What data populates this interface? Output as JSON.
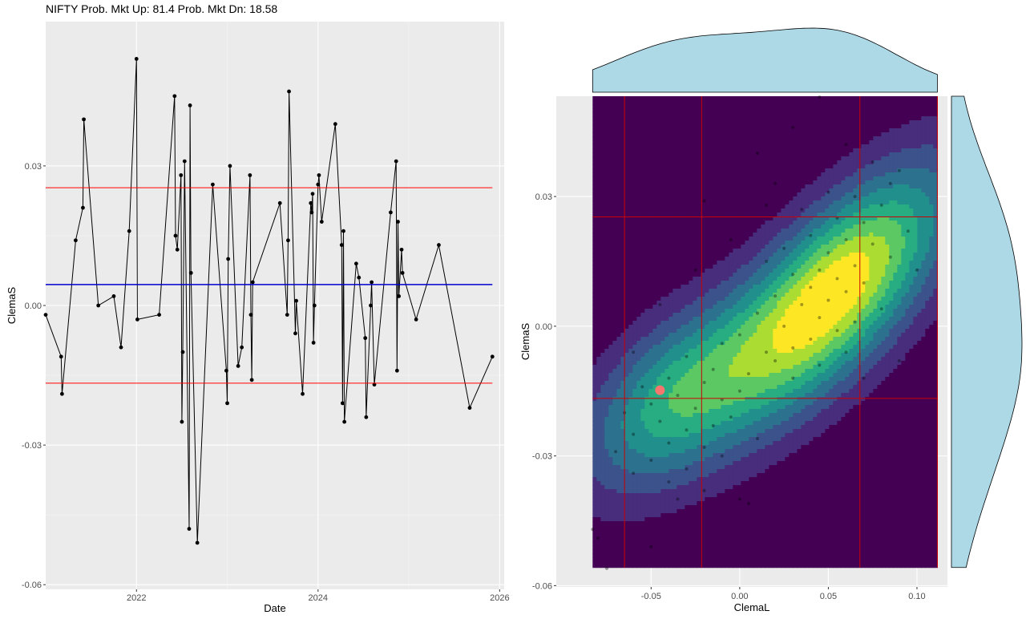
{
  "title": "NIFTY Prob. Mkt Up:  81.4  Prob. Mkt Dn:  18.58",
  "colors": {
    "panel_bg": "#ebebeb",
    "grid_major": "#ffffff",
    "line": "#000000",
    "mean_line": "#0000cc",
    "band_line": "#ff0000",
    "marginal_fill": "#add8e6",
    "current_point": "#f8766d",
    "viridis": [
      "#440154",
      "#472d7b",
      "#3b528b",
      "#2c728e",
      "#21908d",
      "#27ad81",
      "#5cc863",
      "#aadc32",
      "#fde725"
    ]
  },
  "chart_data": [
    {
      "type": "line",
      "xlabel": "Date",
      "ylabel": "ClemaS",
      "xlim": [
        2021.0,
        2026.05
      ],
      "ylim": [
        -0.061,
        0.061
      ],
      "x_ticks": [
        2022,
        2024,
        2026
      ],
      "x_tick_labels": [
        "2022",
        "2024",
        "2026"
      ],
      "y_ticks": [
        -0.06,
        -0.03,
        0.0,
        0.03
      ],
      "y_tick_labels": [
        "-0.06",
        "-0.03",
        "0.00",
        "0.03"
      ],
      "grid": true,
      "hlines": [
        {
          "name": "mean",
          "y": 0.0045,
          "color": "#0000cc"
        },
        {
          "name": "upper",
          "y": 0.0253,
          "color": "#ff0000"
        },
        {
          "name": "lower",
          "y": -0.0167,
          "color": "#ff0000"
        }
      ],
      "points": [
        [
          2021.0,
          -0.002
        ],
        [
          2021.17,
          -0.011
        ],
        [
          2021.18,
          -0.019
        ],
        [
          2021.33,
          0.014
        ],
        [
          2021.41,
          0.021
        ],
        [
          2021.42,
          0.04
        ],
        [
          2021.58,
          0.0
        ],
        [
          2021.75,
          0.002
        ],
        [
          2021.83,
          -0.009
        ],
        [
          2021.92,
          0.016
        ],
        [
          2022.0,
          0.053
        ],
        [
          2022.01,
          -0.003
        ],
        [
          2022.25,
          -0.002
        ],
        [
          2022.42,
          0.045
        ],
        [
          2022.43,
          0.015
        ],
        [
          2022.45,
          0.012
        ],
        [
          2022.49,
          0.028
        ],
        [
          2022.5,
          -0.025
        ],
        [
          2022.51,
          -0.01
        ],
        [
          2022.53,
          0.031
        ],
        [
          2022.58,
          -0.048
        ],
        [
          2022.59,
          0.043
        ],
        [
          2022.6,
          0.007
        ],
        [
          2022.67,
          -0.051
        ],
        [
          2022.84,
          0.026
        ],
        [
          2022.99,
          -0.014
        ],
        [
          2023.0,
          -0.021
        ],
        [
          2023.01,
          0.01
        ],
        [
          2023.03,
          0.03
        ],
        [
          2023.12,
          -0.013
        ],
        [
          2023.16,
          -0.009
        ],
        [
          2023.25,
          0.028
        ],
        [
          2023.26,
          -0.002
        ],
        [
          2023.27,
          -0.016
        ],
        [
          2023.28,
          0.005
        ],
        [
          2023.58,
          0.022
        ],
        [
          2023.66,
          -0.002
        ],
        [
          2023.67,
          0.014
        ],
        [
          2023.68,
          0.046
        ],
        [
          2023.75,
          -0.006
        ],
        [
          2023.76,
          0.001
        ],
        [
          2023.83,
          -0.019
        ],
        [
          2023.92,
          0.022
        ],
        [
          2023.93,
          0.02
        ],
        [
          2023.94,
          0.024
        ],
        [
          2023.95,
          -0.008
        ],
        [
          2023.96,
          0.0
        ],
        [
          2024.0,
          0.026
        ],
        [
          2024.01,
          0.028
        ],
        [
          2024.04,
          0.018
        ],
        [
          2024.19,
          0.039
        ],
        [
          2024.26,
          0.013
        ],
        [
          2024.27,
          -0.021
        ],
        [
          2024.28,
          0.016
        ],
        [
          2024.29,
          -0.025
        ],
        [
          2024.42,
          0.009
        ],
        [
          2024.45,
          0.006
        ],
        [
          2024.52,
          -0.007
        ],
        [
          2024.53,
          -0.024
        ],
        [
          2024.58,
          0.0
        ],
        [
          2024.59,
          0.005
        ],
        [
          2024.62,
          -0.017
        ],
        [
          2024.8,
          0.02
        ],
        [
          2024.86,
          0.031
        ],
        [
          2024.87,
          -0.014
        ],
        [
          2024.88,
          0.018
        ],
        [
          2024.89,
          0.002
        ],
        [
          2024.92,
          0.012
        ],
        [
          2024.93,
          0.007
        ],
        [
          2025.08,
          -0.003
        ],
        [
          2025.33,
          0.013
        ],
        [
          2025.67,
          -0.022
        ],
        [
          2025.92,
          -0.011
        ]
      ]
    },
    {
      "type": "heatmap",
      "subtype": "2d density contour with scatter and marginal densities",
      "xlabel": "ClemaL",
      "ylabel": "ClemaS",
      "xlim": [
        -0.1035,
        0.1172
      ],
      "ylim": [
        -0.0603,
        0.0532
      ],
      "x_ticks": [
        -0.05,
        0.0,
        0.05,
        0.1
      ],
      "x_tick_labels": [
        "-0.05",
        "0.00",
        "0.05",
        "0.10"
      ],
      "y_ticks": [
        -0.06,
        -0.03,
        0.0,
        0.03
      ],
      "y_tick_labels": [
        "-0.06",
        "-0.03",
        "0.00",
        "0.03"
      ],
      "grid": true,
      "vlines": [
        -0.065,
        -0.0215,
        0.0678
      ],
      "hlines": [
        0.0253,
        -0.0167
      ],
      "current_point": {
        "x": -0.045,
        "y": -0.0148
      },
      "density_peak": {
        "x": 0.052,
        "y": 0.007
      },
      "density_secondary": {
        "x": -0.04,
        "y": -0.017
      },
      "points": [
        [
          0.045,
          0.053
        ],
        [
          0.03,
          0.046
        ],
        [
          0.06,
          0.042
        ],
        [
          0.01,
          0.04
        ],
        [
          0.075,
          0.038
        ],
        [
          0.09,
          0.036
        ],
        [
          0.02,
          0.033
        ],
        [
          0.05,
          0.031
        ],
        [
          0.065,
          0.03
        ],
        [
          0.08,
          0.028
        ],
        [
          -0.02,
          0.029
        ],
        [
          0.035,
          0.027
        ],
        [
          0.055,
          0.025
        ],
        [
          0.07,
          0.024
        ],
        [
          0.095,
          0.022
        ],
        [
          0.04,
          0.021
        ],
        [
          0.06,
          0.02
        ],
        [
          0.075,
          0.019
        ],
        [
          0.025,
          0.018
        ],
        [
          0.05,
          0.017
        ],
        [
          0.085,
          0.016
        ],
        [
          0.015,
          0.015
        ],
        [
          0.065,
          0.014
        ],
        [
          0.045,
          0.013
        ],
        [
          -0.025,
          0.013
        ],
        [
          0.03,
          0.012
        ],
        [
          0.055,
          0.011
        ],
        [
          0.07,
          0.01
        ],
        [
          0.04,
          0.009
        ],
        [
          0.06,
          0.008
        ],
        [
          0.02,
          0.007
        ],
        [
          0.05,
          0.006
        ],
        [
          0.035,
          0.005
        ],
        [
          0.08,
          0.004
        ],
        [
          0.01,
          0.003
        ],
        [
          0.045,
          0.002
        ],
        [
          0.065,
          0.001
        ],
        [
          0.025,
          0.0
        ],
        [
          0.055,
          -0.001
        ],
        [
          0.0,
          -0.002
        ],
        [
          0.04,
          -0.003
        ],
        [
          -0.01,
          -0.004
        ],
        [
          0.03,
          -0.005
        ],
        [
          0.015,
          -0.006
        ],
        [
          0.06,
          -0.006
        ],
        [
          -0.03,
          -0.007
        ],
        [
          0.02,
          -0.008
        ],
        [
          0.045,
          -0.009
        ],
        [
          -0.015,
          -0.01
        ],
        [
          0.005,
          -0.011
        ],
        [
          -0.04,
          -0.012
        ],
        [
          0.03,
          -0.012
        ],
        [
          -0.02,
          -0.013
        ],
        [
          -0.055,
          -0.014
        ],
        [
          0.0,
          -0.015
        ],
        [
          -0.035,
          -0.016
        ],
        [
          -0.01,
          -0.017
        ],
        [
          -0.05,
          -0.018
        ],
        [
          -0.025,
          -0.019
        ],
        [
          -0.065,
          -0.02
        ],
        [
          -0.005,
          -0.021
        ],
        [
          -0.045,
          -0.022
        ],
        [
          -0.015,
          -0.023
        ],
        [
          -0.03,
          -0.024
        ],
        [
          -0.06,
          -0.025
        ],
        [
          0.01,
          -0.026
        ],
        [
          -0.04,
          -0.027
        ],
        [
          -0.02,
          -0.028
        ],
        [
          -0.07,
          -0.029
        ],
        [
          -0.01,
          -0.03
        ],
        [
          -0.05,
          -0.031
        ],
        [
          -0.03,
          -0.033
        ],
        [
          -0.06,
          -0.034
        ],
        [
          -0.04,
          -0.036
        ],
        [
          -0.02,
          -0.038
        ],
        [
          -0.035,
          -0.04
        ],
        [
          0.0,
          -0.04
        ],
        [
          0.005,
          -0.041
        ],
        [
          -0.05,
          -0.051
        ],
        [
          -0.083,
          -0.047
        ],
        [
          -0.08,
          -0.049
        ],
        [
          -0.075,
          -0.056
        ],
        [
          0.015,
          0.028
        ],
        [
          0.085,
          0.033
        ],
        [
          0.1,
          0.013
        ],
        [
          -0.005,
          0.02
        ],
        [
          0.09,
          -0.008
        ],
        [
          -0.045,
          0.005
        ],
        [
          0.07,
          -0.012
        ],
        [
          -0.06,
          -0.006
        ]
      ]
    }
  ]
}
